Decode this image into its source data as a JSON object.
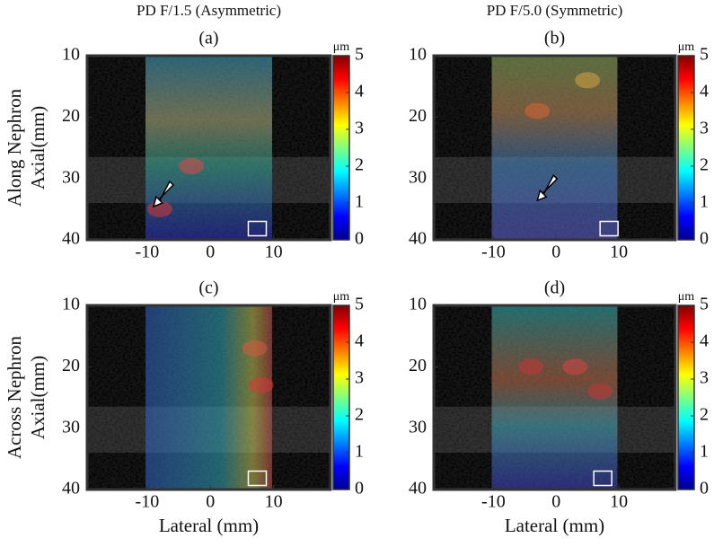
{
  "chart_data": [
    {
      "type": "image",
      "column_title": "PD F/1.5 (Asymmetric)",
      "label": "(a)",
      "row_label": "Along Nephron",
      "ylabel": "Axial(mm)",
      "xlim": [
        -19.5,
        19
      ],
      "ylim": [
        10,
        40
      ],
      "y_inverted": true,
      "xticks": [
        -10,
        0,
        10
      ],
      "yticks": [
        10,
        20,
        30,
        40
      ],
      "colorbar": {
        "unit": "μm",
        "lim": [
          0,
          5
        ],
        "ticks": [
          0,
          1,
          2,
          3,
          4,
          5
        ]
      }
    },
    {
      "type": "image",
      "column_title": "PD F/5.0 (Symmetric)",
      "label": "(b)",
      "xlim": [
        -19.5,
        19
      ],
      "ylim": [
        10,
        40
      ],
      "y_inverted": true,
      "xticks": [
        -10,
        0,
        10
      ],
      "yticks": [
        10,
        20,
        30,
        40
      ],
      "colorbar": {
        "unit": "μm",
        "lim": [
          0,
          5
        ],
        "ticks": [
          0,
          1,
          2,
          3,
          4,
          5
        ]
      }
    },
    {
      "type": "image",
      "label": "(c)",
      "row_label": "Across Nephron",
      "ylabel": "Axial(mm)",
      "xlabel": "Lateral (mm)",
      "xlim": [
        -19.5,
        19
      ],
      "ylim": [
        10,
        40
      ],
      "y_inverted": true,
      "xticks": [
        -10,
        0,
        10
      ],
      "yticks": [
        10,
        20,
        30,
        40
      ],
      "colorbar": {
        "unit": "μm",
        "lim": [
          0,
          5
        ],
        "ticks": [
          0,
          1,
          2,
          3,
          4,
          5
        ]
      }
    },
    {
      "type": "image",
      "label": "(d)",
      "xlabel": "Lateral (mm)",
      "xlim": [
        -19.5,
        19
      ],
      "ylim": [
        10,
        40
      ],
      "y_inverted": true,
      "xticks": [
        -10,
        0,
        10
      ],
      "yticks": [
        10,
        20,
        30,
        40
      ],
      "colorbar": {
        "unit": "μm",
        "lim": [
          0,
          5
        ],
        "ticks": [
          0,
          1,
          2,
          3,
          4,
          5
        ]
      }
    }
  ]
}
